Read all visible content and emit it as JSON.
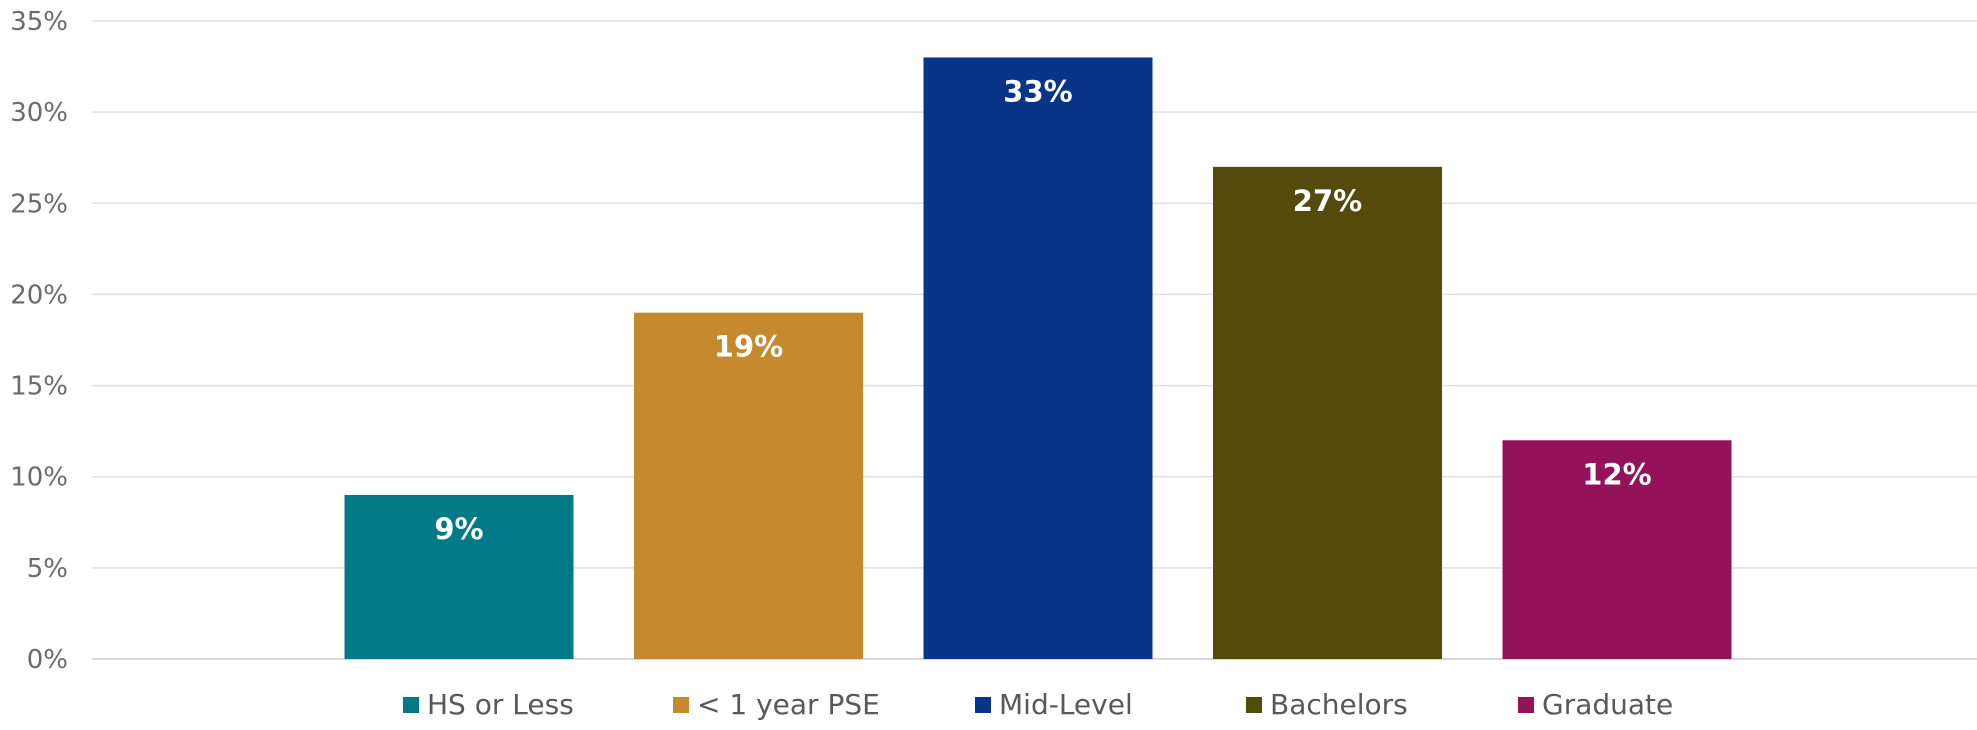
{
  "chart_data": {
    "type": "bar",
    "categories": [
      "HS or Less",
      "< 1 year PSE",
      "Mid-Level",
      "Bachelors",
      "Graduate"
    ],
    "values": [
      9,
      19,
      33,
      27,
      12
    ],
    "data_labels": [
      "9%",
      "19%",
      "33%",
      "27%",
      "12%"
    ],
    "colors": [
      "#007A87",
      "#C6892D",
      "#083587",
      "#544A0C",
      "#931259"
    ],
    "ylim": [
      0,
      35
    ],
    "yticks": [
      0,
      5,
      10,
      15,
      20,
      25,
      30,
      35
    ],
    "ytick_labels": [
      "0%",
      "5%",
      "10%",
      "15%",
      "20%",
      "25%",
      "30%",
      "35%"
    ],
    "grid": true,
    "legend": {
      "placement": "bottom",
      "entries": [
        "HS or Less",
        "< 1 year PSE",
        "Mid-Level",
        "Bachelors",
        "Graduate"
      ]
    }
  }
}
